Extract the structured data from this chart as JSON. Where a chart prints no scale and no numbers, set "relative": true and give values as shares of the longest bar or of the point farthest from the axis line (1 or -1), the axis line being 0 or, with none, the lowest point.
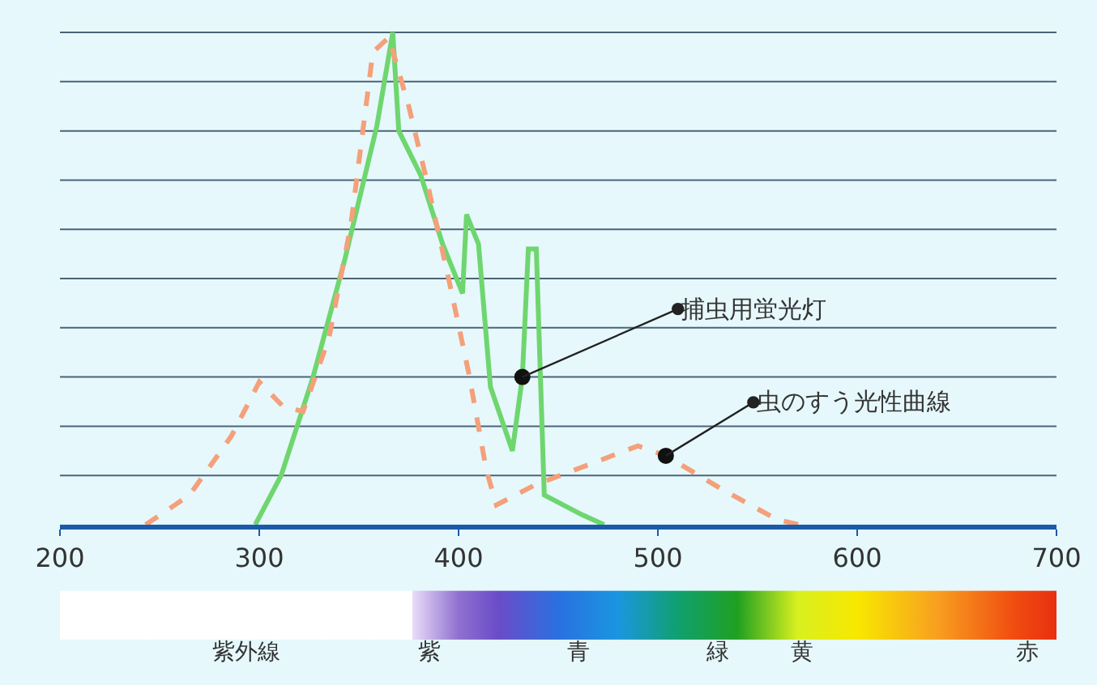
{
  "chart_data": {
    "type": "line",
    "relative": true,
    "legend": false,
    "xlim": [
      200,
      700
    ],
    "xticks": [
      200,
      300,
      400,
      500,
      600,
      700
    ],
    "series": [
      {
        "name": "捕虫用蛍光灯",
        "color": "#6fd66f",
        "line_style": "solid",
        "x": [
          298,
          311,
          327,
          343,
          359,
          367,
          370,
          381,
          392,
          402,
          404,
          410,
          416,
          427,
          432,
          435,
          439,
          443,
          462,
          473
        ],
        "values": [
          0,
          0.1,
          0.3,
          0.54,
          0.81,
          1.0,
          0.8,
          0.71,
          0.57,
          0.47,
          0.63,
          0.57,
          0.28,
          0.15,
          0.3,
          0.56,
          0.56,
          0.06,
          0.02,
          0
        ]
      },
      {
        "name": "虫のすう光性曲線",
        "color": "#f4a07a",
        "line_style": "dashed",
        "x": [
          243,
          265,
          286,
          300,
          312,
          322,
          335,
          346,
          357,
          365,
          375,
          384,
          395,
          405,
          414,
          419,
          438,
          490,
          504,
          533,
          560,
          571
        ],
        "values": [
          0,
          0.06,
          0.18,
          0.29,
          0.24,
          0.23,
          0.38,
          0.61,
          0.96,
          0.99,
          0.85,
          0.7,
          0.5,
          0.31,
          0.11,
          0.04,
          0.08,
          0.16,
          0.14,
          0.07,
          0.01,
          0
        ]
      }
    ],
    "ref_lines": [
      {
        "axis": "y",
        "value": 0.1,
        "color": "#4a6478"
      },
      {
        "axis": "y",
        "value": 0.2,
        "color": "#4a6478"
      },
      {
        "axis": "y",
        "value": 0.3,
        "color": "#4a6478"
      },
      {
        "axis": "y",
        "value": 0.4,
        "color": "#4a6478"
      },
      {
        "axis": "y",
        "value": 0.5,
        "color": "#4a6478"
      },
      {
        "axis": "y",
        "value": 0.6,
        "color": "#4a6478"
      },
      {
        "axis": "y",
        "value": 0.7,
        "color": "#4a6478"
      },
      {
        "axis": "y",
        "value": 0.8,
        "color": "#4a6478"
      },
      {
        "axis": "y",
        "value": 0.9,
        "color": "#4a6478"
      },
      {
        "axis": "y",
        "value": 1.0,
        "color": "#4a6478"
      }
    ],
    "annotations": [
      "紫外線",
      "紫",
      "青",
      "緑",
      "黄",
      "赤"
    ]
  }
}
